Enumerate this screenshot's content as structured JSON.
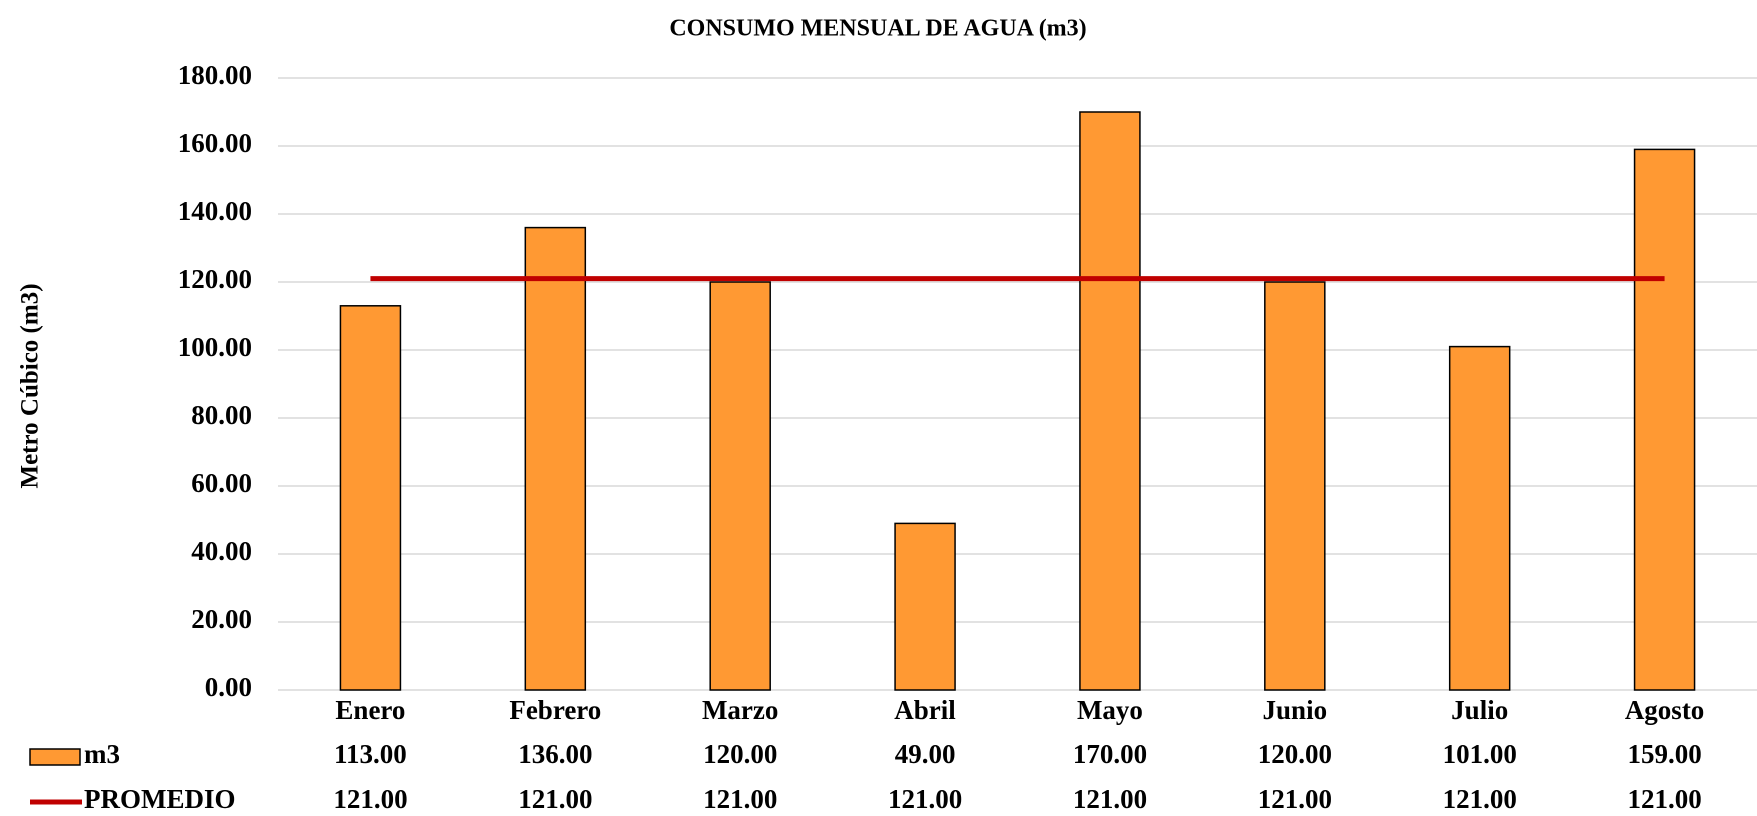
{
  "chart_data": {
    "type": "bar",
    "title": "CONSUMO MENSUAL DE AGUA (m3)",
    "y_label": "Metro Cúbico (m3)",
    "categories": [
      "Enero",
      "Febrero",
      "Marzo",
      "Abril",
      "Mayo",
      "Junio",
      "Julio",
      "Agosto"
    ],
    "series": [
      {
        "name": "m3",
        "type": "bar",
        "color": "#ff9933",
        "values": [
          113,
          136,
          120,
          49,
          170,
          120,
          101,
          159
        ],
        "value_labels": [
          "113.00",
          "136.00",
          "120.00",
          "49.00",
          "170.00",
          "120.00",
          "101.00",
          "159.00"
        ]
      },
      {
        "name": "PROMEDIO",
        "type": "line",
        "color": "#c00000",
        "values": [
          121,
          121,
          121,
          121,
          121,
          121,
          121,
          121
        ],
        "value_labels": [
          "121.00",
          "121.00",
          "121.00",
          "121.00",
          "121.00",
          "121.00",
          "121.00",
          "121.00"
        ]
      }
    ],
    "ylim": [
      0,
      180
    ],
    "yticks": [
      {
        "value": 0,
        "label": "0.00"
      },
      {
        "value": 20,
        "label": "20.00"
      },
      {
        "value": 40,
        "label": "40.00"
      },
      {
        "value": 60,
        "label": "60.00"
      },
      {
        "value": 80,
        "label": "80.00"
      },
      {
        "value": 100,
        "label": "100.00"
      },
      {
        "value": 120,
        "label": "120.00"
      },
      {
        "value": 140,
        "label": "140.00"
      },
      {
        "value": 160,
        "label": "160.00"
      },
      {
        "value": 180,
        "label": "180.00"
      }
    ],
    "grid": true
  }
}
